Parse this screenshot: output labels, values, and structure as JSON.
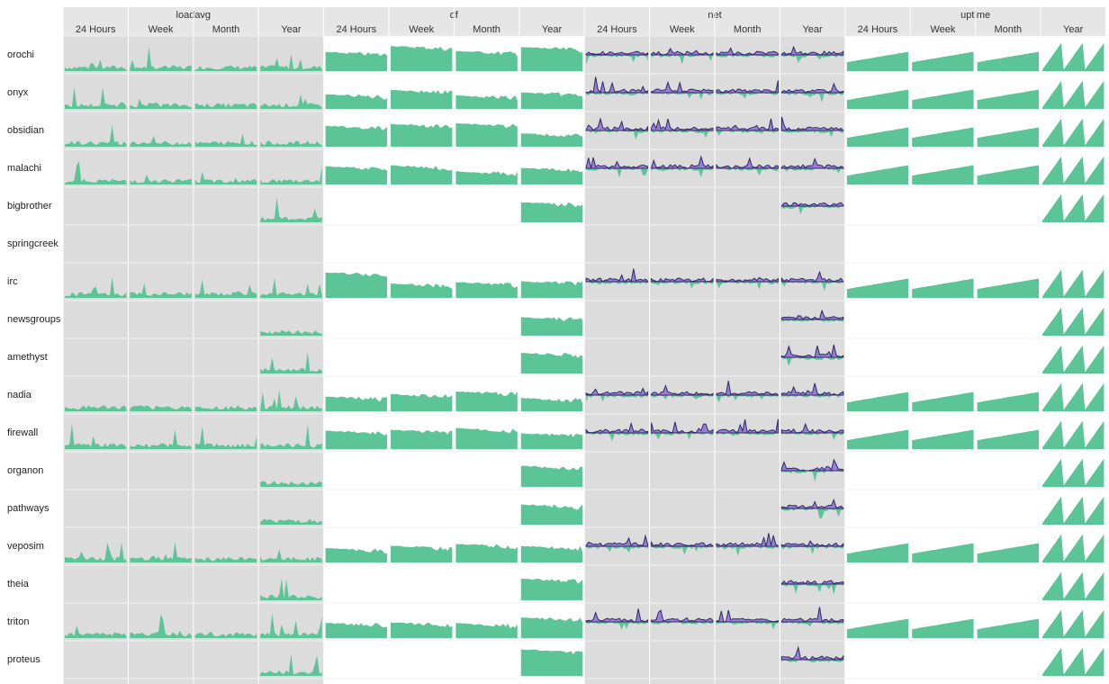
{
  "chart_data": {
    "type": "sparkline-grid",
    "metrics": [
      {
        "name": "loadavg",
        "periods": [
          "24 Hours",
          "Week",
          "Month",
          "Year"
        ]
      },
      {
        "name": "df",
        "periods": [
          "24 Hours",
          "Week",
          "Month",
          "Year"
        ]
      },
      {
        "name": "net",
        "periods": [
          "24 Hours",
          "Week",
          "Month",
          "Year"
        ]
      },
      {
        "name": "uptime",
        "periods": [
          "24 Hours",
          "Week",
          "Month",
          "Year"
        ]
      }
    ],
    "hosts": [
      {
        "name": "orochi",
        "coverage": "full"
      },
      {
        "name": "onyx",
        "coverage": "full"
      },
      {
        "name": "obsidian",
        "coverage": "full"
      },
      {
        "name": "malachi",
        "coverage": "full"
      },
      {
        "name": "bigbrother",
        "coverage": "year-only"
      },
      {
        "name": "springcreek",
        "coverage": "none"
      },
      {
        "name": "irc",
        "coverage": "full"
      },
      {
        "name": "newsgroups",
        "coverage": "year-only"
      },
      {
        "name": "amethyst",
        "coverage": "year-only"
      },
      {
        "name": "nadia",
        "coverage": "full"
      },
      {
        "name": "firewall",
        "coverage": "full"
      },
      {
        "name": "organon",
        "coverage": "year-only"
      },
      {
        "name": "pathways",
        "coverage": "year-only"
      },
      {
        "name": "veposim",
        "coverage": "full"
      },
      {
        "name": "theia",
        "coverage": "year-only"
      },
      {
        "name": "triton",
        "coverage": "full"
      },
      {
        "name": "proteus",
        "coverage": "year-only"
      }
    ],
    "series_colors": {
      "inbound": "#5cc597",
      "outbound": "#9b7fd6",
      "outline": "#2c2a66"
    },
    "panel_colors": {
      "shaded": "#dcdcdc",
      "plain": "#ffffff",
      "header": "#e6e6e6"
    }
  }
}
